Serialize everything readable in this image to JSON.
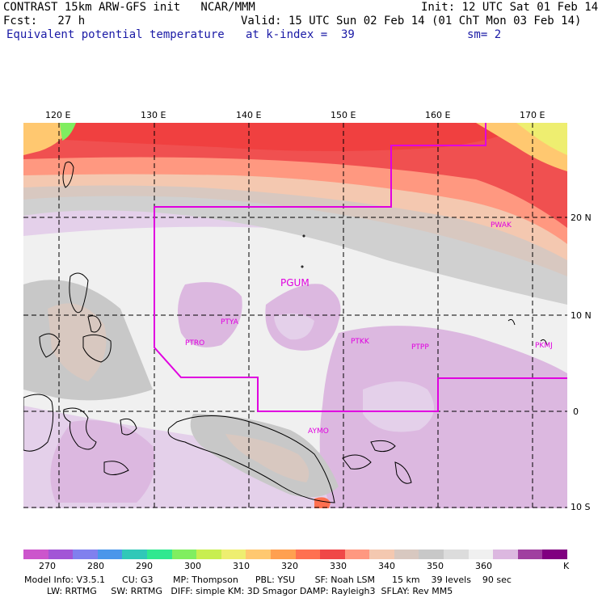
{
  "header": {
    "model_line": "CONTRAST 15km ARW-GFS init   NCAR/MMM",
    "init": "Init: 12 UTC Sat 01 Feb 14",
    "fcst": "Fcst:   27 h",
    "valid": "Valid: 15 UTC Sun 02 Feb 14 (01 ChT Mon 03 Feb 14)",
    "field": "Equivalent potential temperature",
    "level": "at k-index =  39",
    "smooth": "sm= 2"
  },
  "axes": {
    "lon_labels": [
      "120 E",
      "130 E",
      "140 E",
      "150 E",
      "160 E",
      "170 E"
    ],
    "lat_labels": [
      "20 N",
      "10 N",
      "0",
      "10 S"
    ]
  },
  "stations": [
    "PGUM",
    "PTYA",
    "PTRO",
    "PTKK",
    "PTPP",
    "PKMJ",
    "PWAK",
    "AYMO"
  ],
  "colorbar": {
    "colors": [
      "#cc55cc",
      "#a255d6",
      "#8080ee",
      "#4a96ea",
      "#30c8b8",
      "#30e890",
      "#80ee60",
      "#c8ee50",
      "#eeee70",
      "#ffc870",
      "#ffa050",
      "#ff7050",
      "#f04848",
      "#ff9880",
      "#f4c8b0",
      "#d8c8c0",
      "#c8c8c8",
      "#dcdcdc",
      "#f0f0f0",
      "#dcb8e0",
      "#a040a0",
      "#800080"
    ],
    "labels": [
      "270",
      "280",
      "290",
      "300",
      "310",
      "320",
      "330",
      "340",
      "350",
      "360"
    ],
    "unit": "K"
  },
  "model_info": {
    "line1": "Model Info: V3.5.1      CU: G3       MP: Thompson      PBL: YSU       SF: Noah LSM      15 km    39 levels    90 sec",
    "line2": "        LW: RRTMG     SW: RRTMG   DIFF: simple KM: 3D Smagor DAMP: Rayleigh3  SFLAY: Rev MM5"
  }
}
